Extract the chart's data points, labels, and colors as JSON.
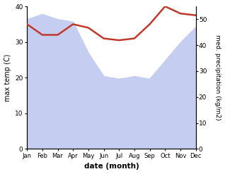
{
  "months": [
    "Jan",
    "Feb",
    "Mar",
    "Apr",
    "May",
    "Jun",
    "Jul",
    "Aug",
    "Sep",
    "Oct",
    "Nov",
    "Dec"
  ],
  "temp": [
    35.0,
    32.0,
    32.0,
    35.0,
    34.0,
    31.0,
    30.5,
    31.0,
    35.0,
    40.0,
    38.0,
    37.5
  ],
  "precip": [
    50,
    52,
    50,
    49,
    37,
    28,
    27,
    28,
    27,
    34,
    41,
    47
  ],
  "temp_color": "#c0392b",
  "precip_fill_color": "#c5cdf0",
  "temp_ylim": [
    0,
    40
  ],
  "precip_ylim": [
    0,
    55
  ],
  "xlabel": "date (month)",
  "ylabel_left": "max temp (C)",
  "ylabel_right": "med. precipitation (kg/m2)",
  "bg_color": "#ffffff"
}
